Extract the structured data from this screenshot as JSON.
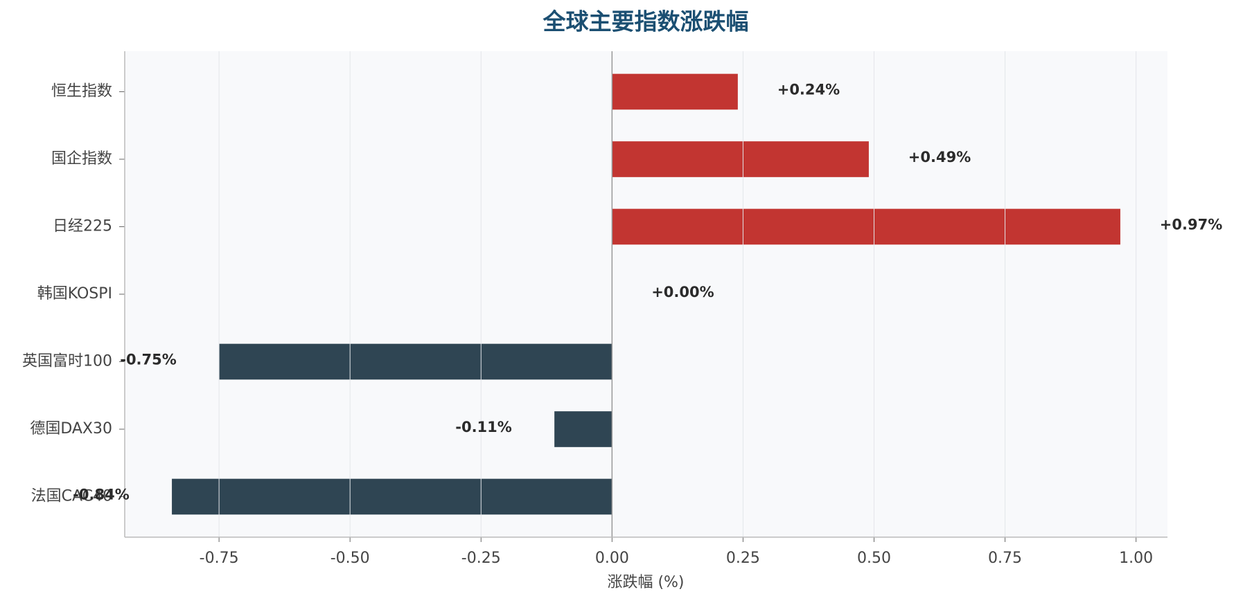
{
  "chart_data": {
    "type": "barh",
    "title": "全球主要指数涨跌幅",
    "categories": [
      "恒生指数",
      "国企指数",
      "日经225",
      "韩国KOSPI",
      "英国富时100",
      "德国DAX30",
      "法国CAC40"
    ],
    "values": [
      0.24,
      0.49,
      0.97,
      0.0,
      -0.75,
      -0.11,
      -0.84
    ],
    "value_labels": [
      "+0.24%",
      "+0.49%",
      "+0.97%",
      "+0.00%",
      "-0.75%",
      "-0.11%",
      "-0.84%"
    ],
    "colors": [
      "#c23531",
      "#c23531",
      "#c23531",
      "#c23531",
      "#2f4553",
      "#2f4553",
      "#2f4553"
    ],
    "xlabel": "涨跌幅 (%)",
    "xlim": [
      -0.93,
      1.06
    ],
    "xticks": [
      -0.75,
      {
        "value": -0.5,
        "label": "-0.50"
      },
      -0.25,
      {
        "value": 0,
        "label": "0.00"
      },
      0.25,
      {
        "value": 0.5,
        "label": "0.50"
      },
      0.75,
      {
        "value": 1,
        "label": "1.00"
      }
    ],
    "grid": true
  }
}
